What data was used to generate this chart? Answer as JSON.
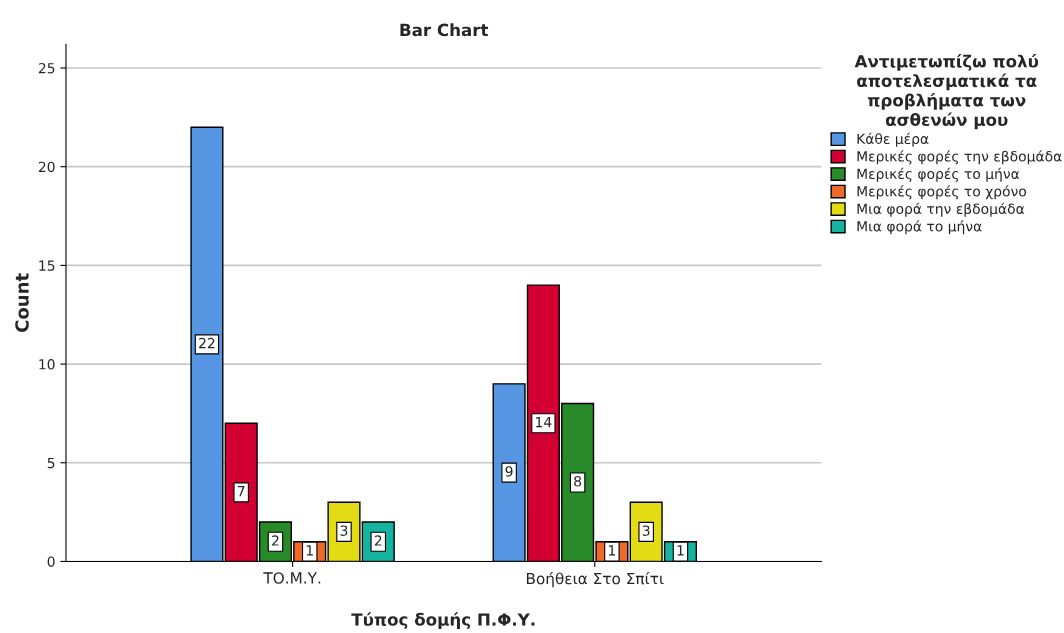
{
  "chart_data": {
    "type": "bar",
    "title": "Bar Chart",
    "xlabel": "Τύπος δομής Π.Φ.Υ.",
    "ylabel": "Count",
    "legend_title": "Αντιμετωπίζω πολύ\nαποτελεσματικά τα\nπροβλήματα των\nασθενών μου",
    "categories": [
      "ΤΟ.Μ.Υ.",
      "Βοήθεια Στο Σπίτι"
    ],
    "series": [
      {
        "name": "Κάθε μέρα",
        "color": "#5696e3",
        "values": [
          22,
          9
        ]
      },
      {
        "name": "Μερικές φορές την εβδομάδα",
        "color": "#d20032",
        "values": [
          7,
          14
        ]
      },
      {
        "name": "Μερικές φορές το μήνα",
        "color": "#288a28",
        "values": [
          2,
          8
        ]
      },
      {
        "name": "Μερικές φορές το χρόνο",
        "color": "#f0682a",
        "values": [
          1,
          1
        ]
      },
      {
        "name": "Μια φορά την εβδομάδα",
        "color": "#e3dc14",
        "values": [
          3,
          3
        ]
      },
      {
        "name": "Μια φορά το μήνα",
        "color": "#14b4a0",
        "values": [
          2,
          1
        ]
      }
    ],
    "ylim": [
      0,
      26.2
    ],
    "yticks": [
      0,
      5,
      10,
      15,
      20,
      25
    ],
    "grid": "y",
    "legend": "top right",
    "data_labels": true
  }
}
